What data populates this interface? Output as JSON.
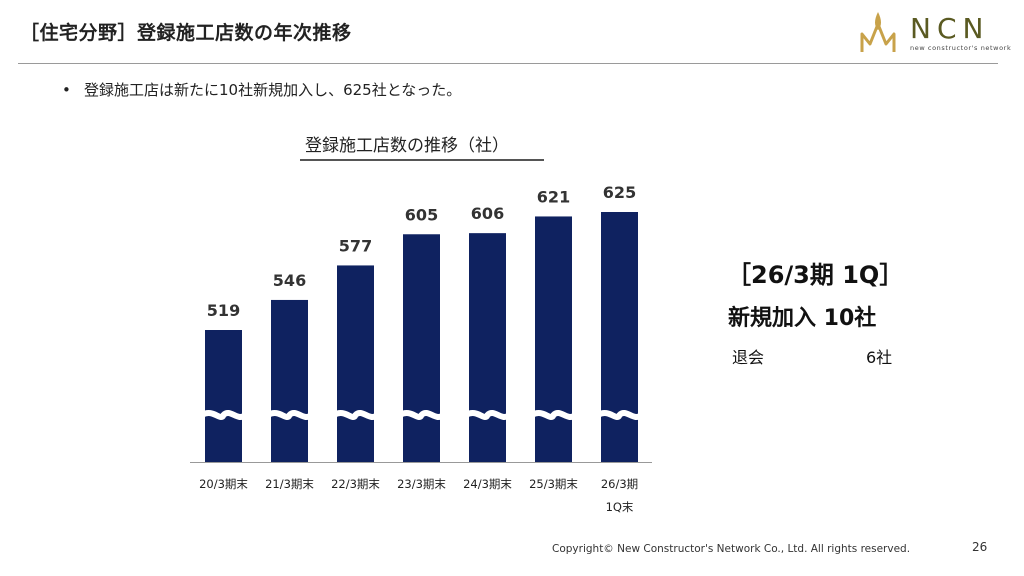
{
  "header": {
    "title": "［住宅分野］登録施工店数の年次推移"
  },
  "logo": {
    "wordmark": "NCN",
    "tagline": "new constructor's network",
    "colors": {
      "gold": "#c8a24a",
      "olive": "#5a5a22"
    }
  },
  "bullet": {
    "text": "登録施工店は新たに10社新規加入し、625社となった。"
  },
  "chart_data": {
    "type": "bar",
    "title": "登録施工店数の推移（社）",
    "categories": [
      "20/3期末",
      "21/3期末",
      "22/3期末",
      "23/3期末",
      "24/3期末",
      "25/3期末",
      "26/3期\n1Q末"
    ],
    "values": [
      519,
      546,
      577,
      605,
      606,
      621,
      625
    ],
    "bar_color": "#0f2260",
    "axis_break": true,
    "grid": false,
    "legend": "none"
  },
  "side_panel": {
    "period": "［26/3期 1Q］",
    "new_members": "新規加入 10社",
    "withdrawal_label": "退会",
    "withdrawal_value": "6社"
  },
  "footer": {
    "copyright": "Copyright© New Constructor's Network Co., Ltd. All rights reserved.",
    "page_number": "26"
  }
}
